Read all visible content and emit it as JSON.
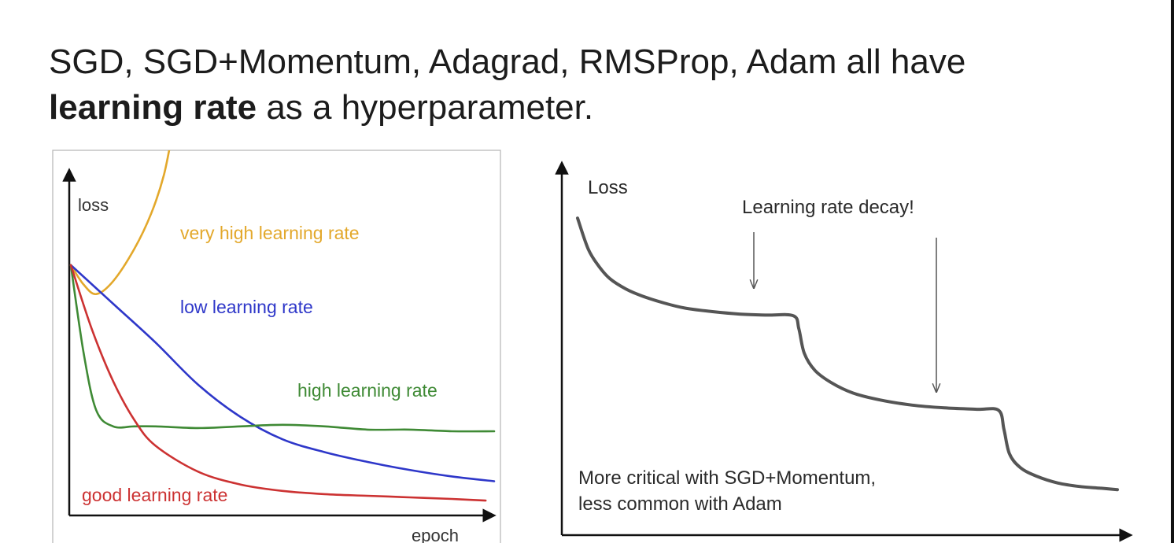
{
  "headline": {
    "line1": "SGD, SGD+Momentum, Adagrad, RMSProp, Adam all have",
    "bold": "learning rate",
    "rest": " as a hyperparameter."
  },
  "colors": {
    "very_high": "#E3A82B",
    "low": "#2E37C9",
    "high": "#3F8A35",
    "good": "#CC3232",
    "decay": "#555555",
    "text": "#1c1c1c"
  },
  "chart_data": [
    {
      "type": "line",
      "title": "",
      "xlabel": "epoch",
      "ylabel": "loss",
      "xlim": [
        0,
        100
      ],
      "ylim": [
        0,
        100
      ],
      "grid": false,
      "series": [
        {
          "name": "very high learning rate",
          "color_key": "very_high",
          "x": [
            0,
            3,
            6,
            10,
            15,
            19,
            22,
            24
          ],
          "y": [
            72,
            66,
            63,
            67,
            77,
            88,
            100,
            113
          ]
        },
        {
          "name": "low learning rate",
          "color_key": "low",
          "x": [
            0,
            10,
            20,
            30,
            40,
            50,
            60,
            70,
            80,
            90,
            100
          ],
          "y": [
            72,
            60,
            48,
            35,
            25,
            18,
            14,
            11,
            8.5,
            6.5,
            5
          ]
        },
        {
          "name": "high learning rate",
          "color_key": "high",
          "x": [
            0,
            3,
            6,
            10,
            15,
            20,
            30,
            40,
            50,
            60,
            70,
            80,
            90,
            100
          ],
          "y": [
            72,
            45,
            27,
            22,
            22,
            22,
            21.5,
            22,
            22.5,
            22,
            21,
            21,
            20.5,
            20.5
          ]
        },
        {
          "name": "good learning rate",
          "color_key": "good",
          "x": [
            0,
            5,
            10,
            15,
            20,
            30,
            40,
            50,
            60,
            70,
            80,
            90,
            98
          ],
          "y": [
            72,
            52,
            36,
            24,
            16,
            8,
            4,
            2,
            1,
            0.5,
            0,
            -0.5,
            -1
          ]
        }
      ],
      "annotations": []
    },
    {
      "type": "line",
      "title": "",
      "xlabel": "",
      "ylabel": "Loss",
      "xlim": [
        0,
        100
      ],
      "ylim": [
        0,
        100
      ],
      "grid": false,
      "series": [
        {
          "name": "",
          "color_key": "decay",
          "x": [
            0,
            2,
            4,
            6,
            9,
            12,
            16,
            20,
            25,
            30,
            35,
            40,
            41,
            42,
            44,
            47,
            51,
            56,
            62,
            68,
            74,
            78,
            79,
            80,
            82,
            85,
            89,
            93,
            97,
            100
          ],
          "y": [
            87,
            78,
            73,
            69.5,
            66.5,
            64.5,
            62.5,
            61,
            60,
            59.3,
            59,
            58.8,
            55,
            48,
            43,
            39.5,
            36.5,
            34.5,
            33,
            32.2,
            31.8,
            31.5,
            26,
            19,
            15,
            12.5,
            10.5,
            9.5,
            9,
            8.6
          ]
        }
      ],
      "annotations": [
        {
          "text": "Learning rate decay!",
          "x": 40
        },
        {
          "text": "",
          "x": 78
        }
      ],
      "note_line1": "More critical with SGD+Momentum,",
      "note_line2": "less common with Adam"
    }
  ]
}
